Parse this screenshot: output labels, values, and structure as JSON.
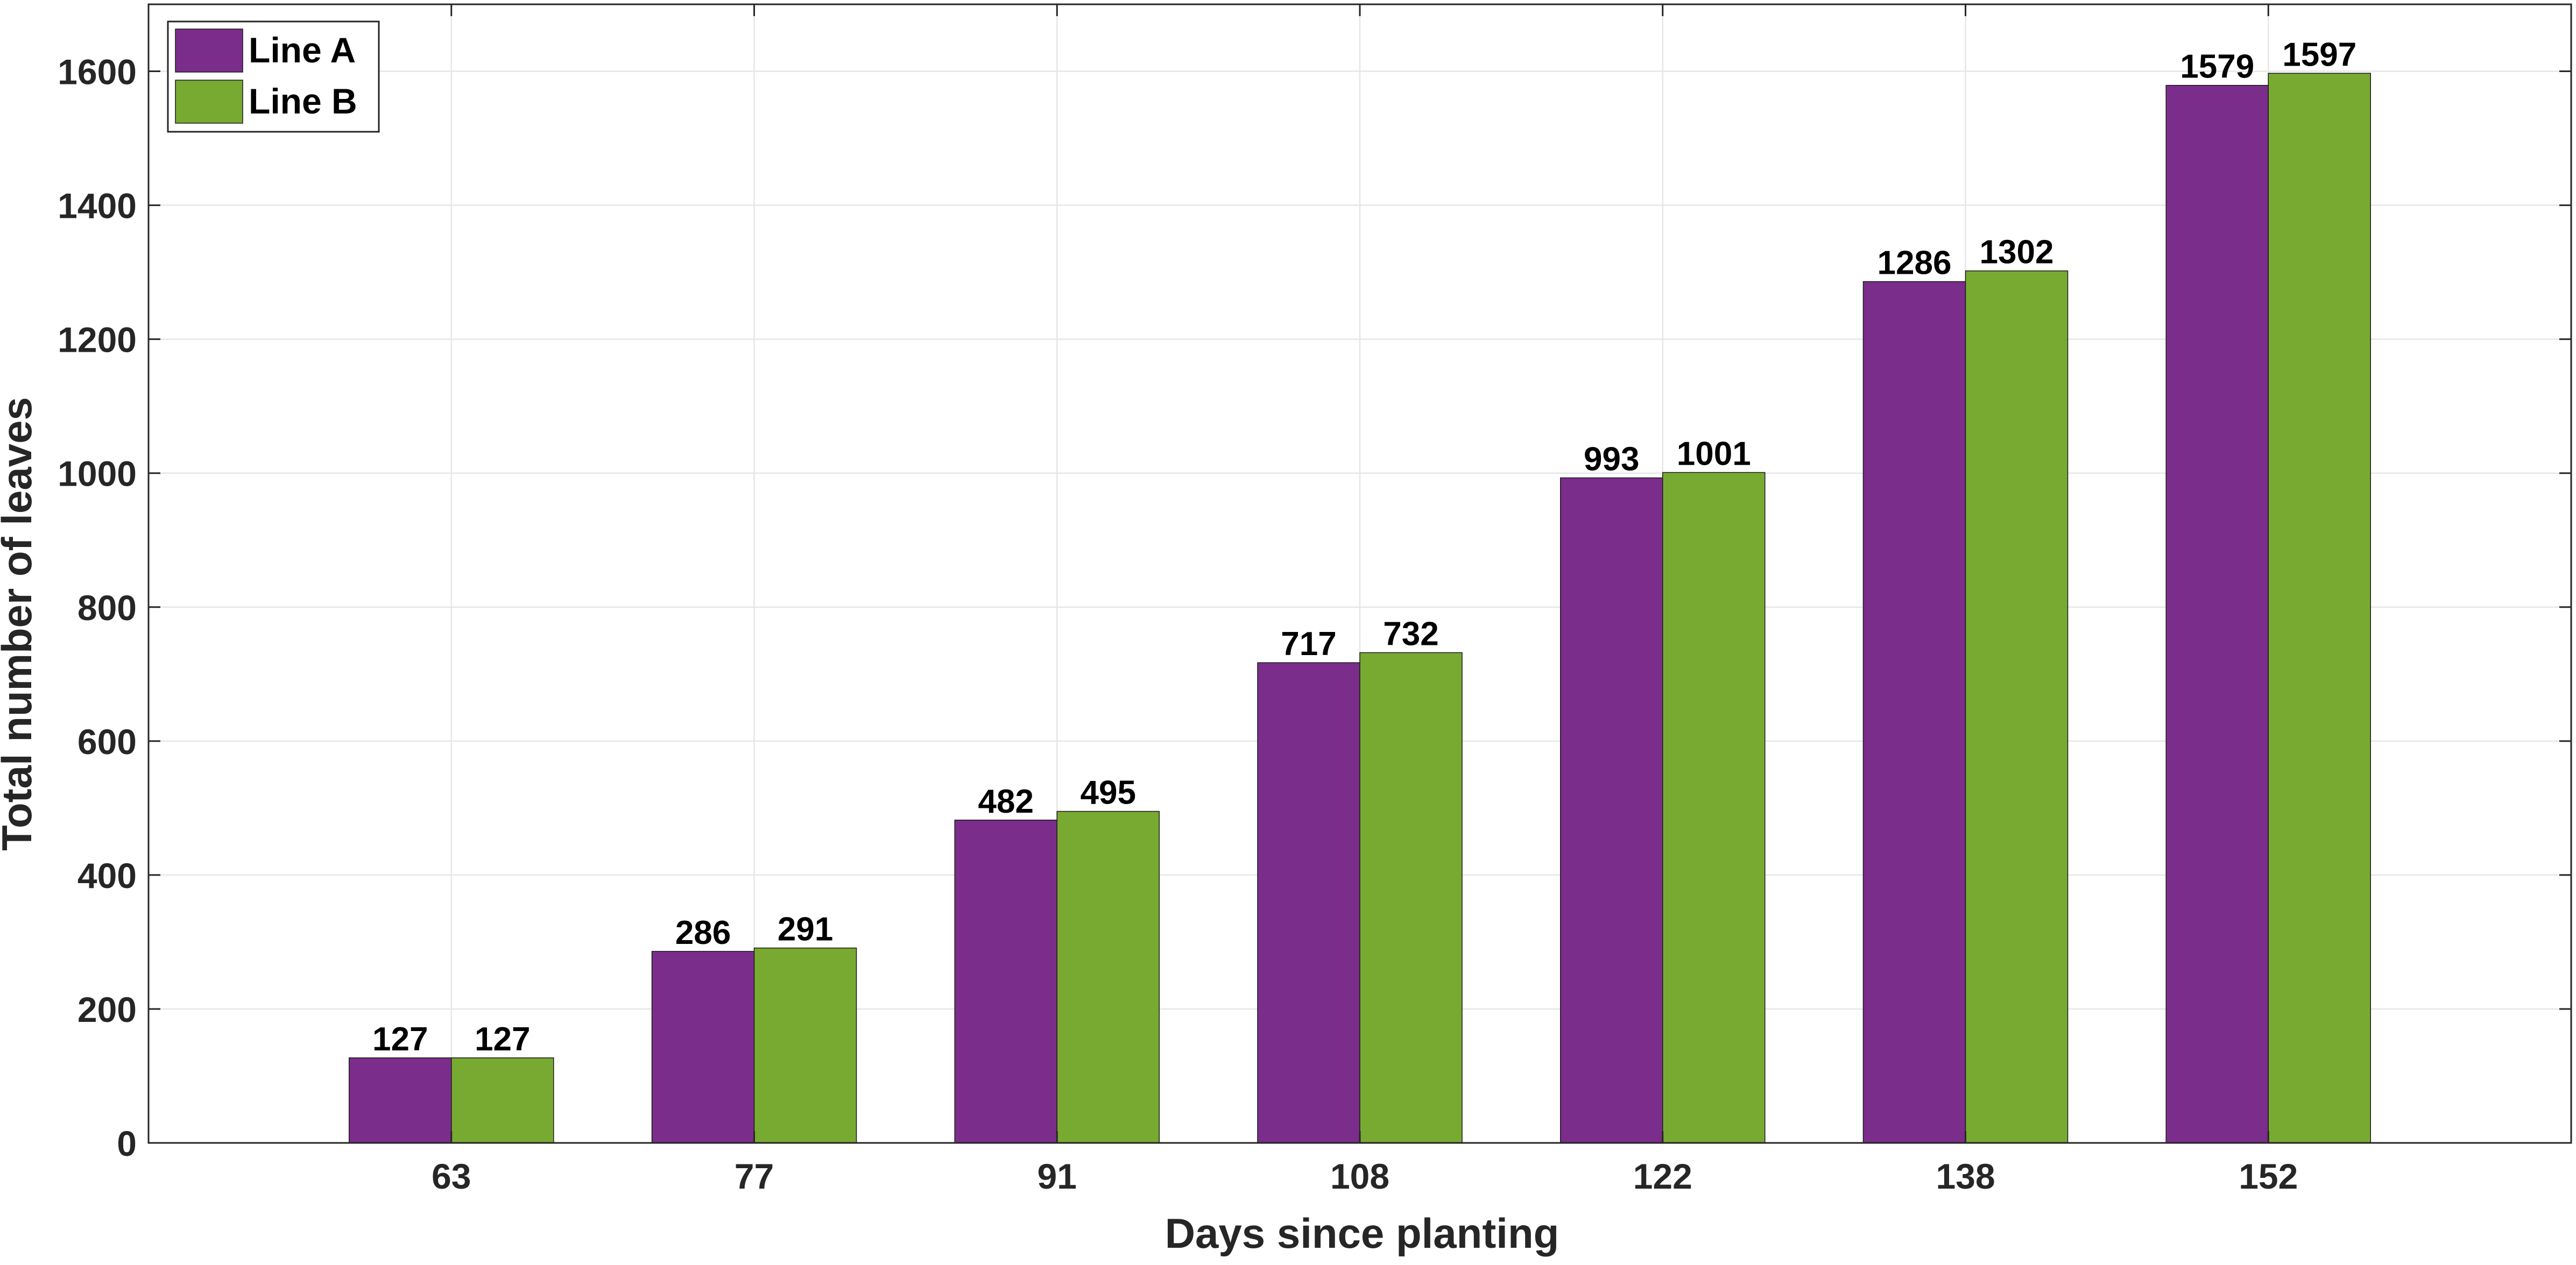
{
  "chart_data": {
    "type": "bar",
    "title": "",
    "xlabel": "Days since planting",
    "ylabel": "Total number of leaves",
    "categories": [
      "63",
      "77",
      "91",
      "108",
      "122",
      "138",
      "152"
    ],
    "series": [
      {
        "name": "Line A",
        "values": [
          127,
          286,
          482,
          717,
          993,
          1286,
          1579
        ],
        "color": "#7B2D8B"
      },
      {
        "name": "Line B",
        "values": [
          127,
          291,
          495,
          732,
          1001,
          1302,
          1597
        ],
        "color": "#78AA32"
      }
    ],
    "data_labels": [
      [
        "127",
        "286",
        "482",
        "717",
        "993",
        "1286",
        "1579"
      ],
      [
        "127",
        "291",
        "495",
        "732",
        "1001",
        "1302",
        "1597"
      ]
    ],
    "ylim": [
      0,
      1700
    ],
    "yticks": [
      0,
      200,
      400,
      600,
      800,
      1000,
      1200,
      1400,
      1600
    ],
    "ytick_labels": [
      "0",
      "200",
      "400",
      "600",
      "800",
      "1000",
      "1200",
      "1400",
      "1600"
    ],
    "grid": true,
    "legend_position": "top-left"
  }
}
